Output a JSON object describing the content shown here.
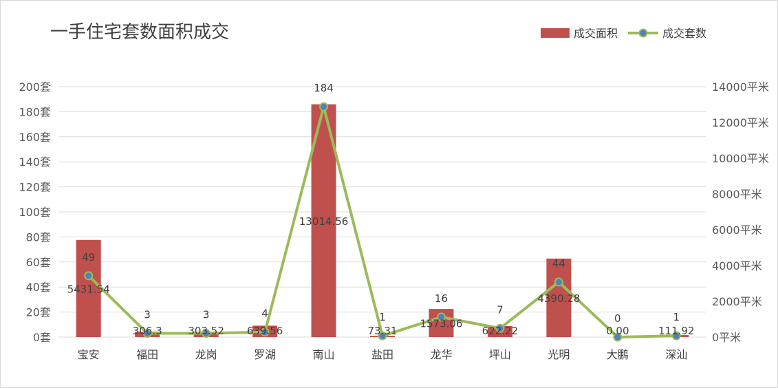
{
  "chart_data": {
    "type": "bar-line-combo",
    "title": "一手住宅套数面积成交",
    "categories": [
      "宝安",
      "福田",
      "龙岗",
      "罗湖",
      "南山",
      "盐田",
      "龙华",
      "坪山",
      "光明",
      "大鹏",
      "深汕"
    ],
    "series": [
      {
        "name": "成交面积",
        "kind": "bar",
        "axis": "right",
        "color": "#c0504d",
        "values": [
          5431.54,
          306.3,
          303.52,
          639.56,
          13014.56,
          73.31,
          1573.06,
          622.22,
          4390.28,
          0.0,
          111.92
        ],
        "labels": [
          "5431.54",
          "306.3",
          "303.52",
          "639.56",
          "13014.56",
          "73.31",
          "1573.06",
          "622.22",
          "4390.28",
          "0.00",
          "111.92"
        ]
      },
      {
        "name": "成交套数",
        "kind": "line",
        "axis": "left",
        "color": "#9bbb59",
        "marker_color": "#4f81bd",
        "values": [
          49,
          3,
          3,
          4,
          184,
          1,
          16,
          7,
          44,
          0,
          1
        ],
        "labels": [
          "49",
          "3",
          "3",
          "4",
          "184",
          "1",
          "16",
          "7",
          "44",
          "0",
          "1"
        ]
      }
    ],
    "y_left": {
      "ylim": [
        0,
        200
      ],
      "ticks": [
        0,
        20,
        40,
        60,
        80,
        100,
        120,
        140,
        160,
        180,
        200
      ],
      "tick_labels": [
        "0套",
        "20套",
        "40套",
        "60套",
        "80套",
        "100套",
        "120套",
        "140套",
        "160套",
        "180套",
        "200套"
      ]
    },
    "y_right": {
      "ylim": [
        0,
        14000
      ],
      "ticks": [
        0,
        2000,
        4000,
        6000,
        8000,
        10000,
        12000,
        14000
      ],
      "tick_labels": [
        "0平米",
        "2000平米",
        "4000平米",
        "6000平米",
        "8000平米",
        "10000平米",
        "12000平米",
        "14000平米"
      ]
    },
    "grid": true,
    "legend": "top-right",
    "gridline_color": "#d9d9d9"
  }
}
